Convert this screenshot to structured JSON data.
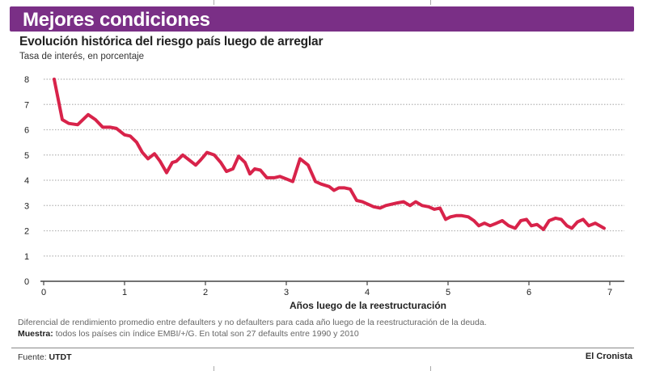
{
  "header": {
    "title": "Mejores condiciones"
  },
  "subtitle": "Evolución histórica del riesgo país luego de arreglar",
  "unit_label": "Tasa de interés, en porcentaje",
  "notes": {
    "line1": "Diferencial de rendimiento promedio entre defaulters y no defaulters para cada año luego de la reestructuración de la deuda.",
    "line2_label": "Muestra:",
    "line2_text": "todos los países cin índice EMBI/+/G. En total son 27 defaults entre 1990 y 2010"
  },
  "footer": {
    "source_label": "Fuente:",
    "source_value": "UTDT",
    "brand": "El Cronista"
  },
  "colors": {
    "header_bg": "#7a2f86",
    "line": "#d8234a",
    "grid": "#b5b5b5"
  },
  "chart_data": {
    "type": "line",
    "title": "Evolución histórica del riesgo país luego de arreglar",
    "xlabel": "Años luego de la reestructuración",
    "ylabel": "Tasa de interés, en porcentaje",
    "xlim": [
      0,
      7
    ],
    "ylim": [
      0,
      8
    ],
    "x_ticks": [
      "0",
      "1",
      "2",
      "3",
      "4",
      "5",
      "6",
      "7"
    ],
    "y_ticks": [
      "0",
      "1",
      "2",
      "3",
      "4",
      "5",
      "6",
      "7",
      "8"
    ],
    "grid": "horizontal",
    "series": [
      {
        "name": "Diferencial de rendimiento",
        "x": [
          0.13,
          0.23,
          0.31,
          0.42,
          0.55,
          0.64,
          0.73,
          0.82,
          0.9,
          1.0,
          1.07,
          1.15,
          1.22,
          1.29,
          1.37,
          1.44,
          1.52,
          1.59,
          1.64,
          1.72,
          1.8,
          1.88,
          1.94,
          2.02,
          2.11,
          2.19,
          2.26,
          2.34,
          2.41,
          2.49,
          2.55,
          2.61,
          2.68,
          2.76,
          2.85,
          2.92,
          3.0,
          3.08,
          3.17,
          3.27,
          3.36,
          3.43,
          3.53,
          3.59,
          3.65,
          3.72,
          3.79,
          3.87,
          3.94,
          4.01,
          4.08,
          4.16,
          4.23,
          4.3,
          4.37,
          4.45,
          4.53,
          4.6,
          4.68,
          4.76,
          4.83,
          4.9,
          4.97,
          5.03,
          5.1,
          5.17,
          5.25,
          5.32,
          5.38,
          5.45,
          5.52,
          5.6,
          5.67,
          5.75,
          5.83,
          5.9,
          5.97,
          6.03,
          6.1,
          6.18,
          6.25,
          6.33,
          6.4,
          6.47,
          6.53,
          6.6,
          6.67,
          6.74,
          6.82,
          6.93
        ],
        "values": [
          8.0,
          6.4,
          6.25,
          6.2,
          6.6,
          6.4,
          6.1,
          6.1,
          6.05,
          5.8,
          5.75,
          5.5,
          5.1,
          4.85,
          5.05,
          4.75,
          4.3,
          4.7,
          4.75,
          5.0,
          4.8,
          4.6,
          4.8,
          5.1,
          5.0,
          4.7,
          4.35,
          4.45,
          4.95,
          4.7,
          4.25,
          4.45,
          4.4,
          4.1,
          4.1,
          4.15,
          4.05,
          3.95,
          4.85,
          4.6,
          3.95,
          3.85,
          3.75,
          3.6,
          3.7,
          3.7,
          3.65,
          3.2,
          3.15,
          3.05,
          2.95,
          2.9,
          3.0,
          3.05,
          3.1,
          3.15,
          3.0,
          3.15,
          3.0,
          2.95,
          2.85,
          2.9,
          2.45,
          2.55,
          2.6,
          2.6,
          2.55,
          2.4,
          2.2,
          2.3,
          2.2,
          2.3,
          2.4,
          2.2,
          2.1,
          2.4,
          2.45,
          2.2,
          2.25,
          2.05,
          2.4,
          2.5,
          2.45,
          2.2,
          2.1,
          2.35,
          2.45,
          2.2,
          2.3,
          2.1
        ]
      }
    ]
  }
}
